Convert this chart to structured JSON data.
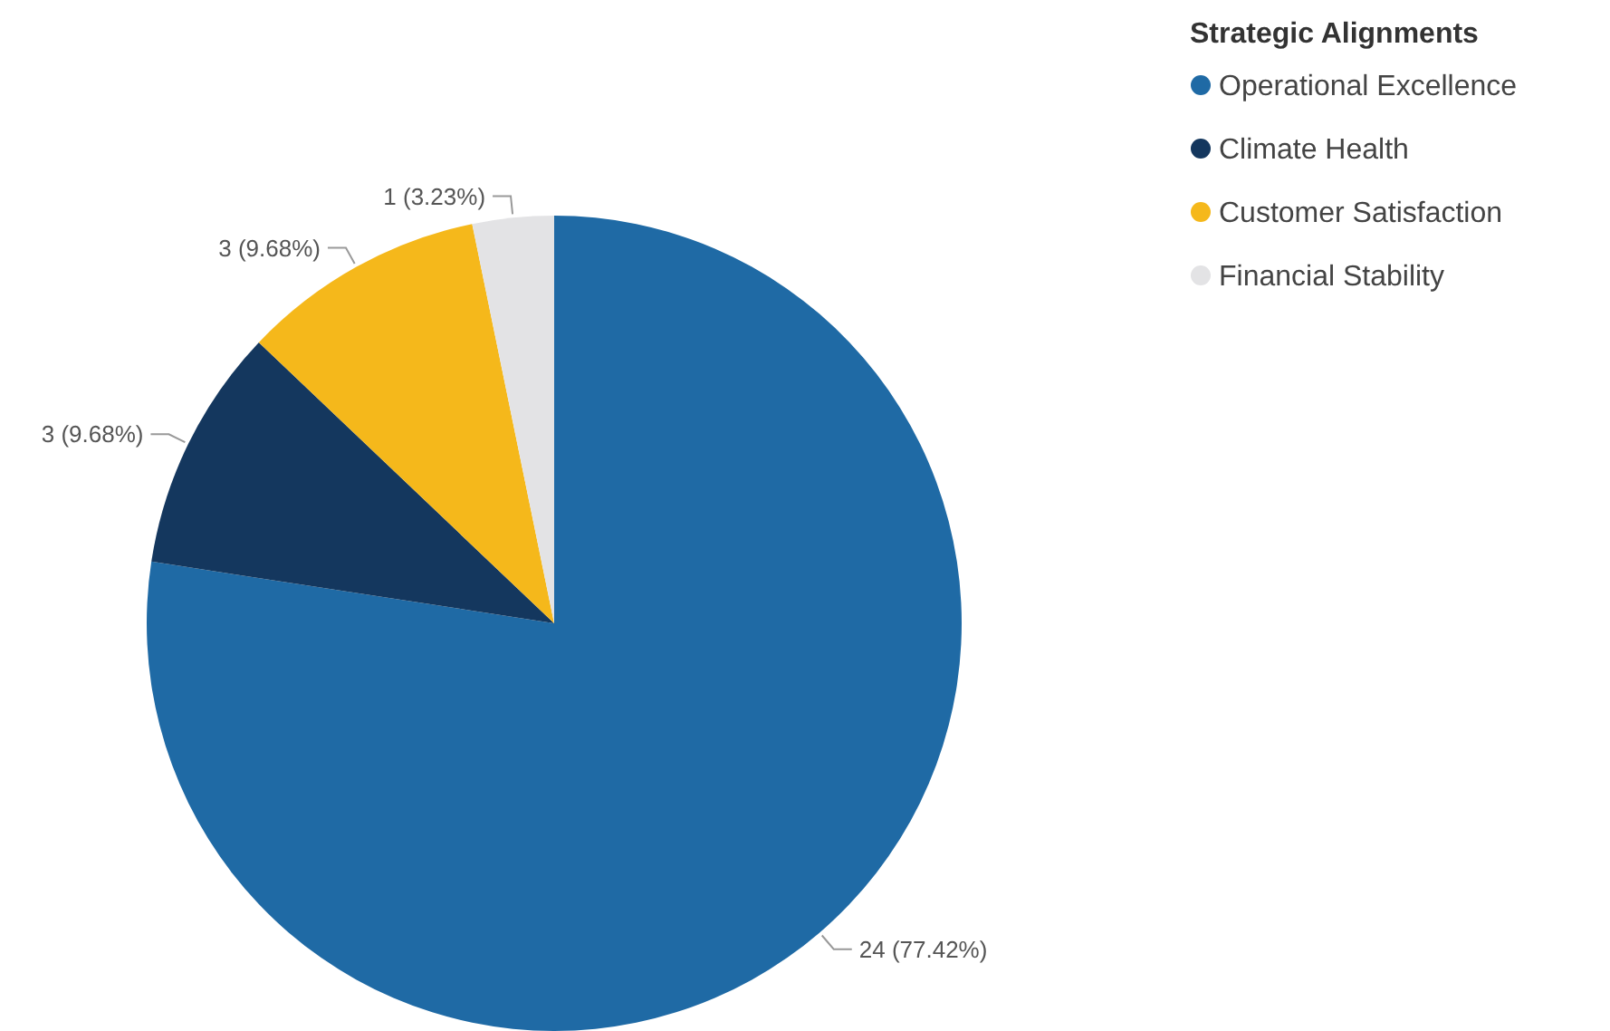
{
  "chart_data": {
    "type": "pie",
    "legend_title": "Strategic Alignments",
    "legend": "top right",
    "categories": [
      "Operational Excellence",
      "Climate Health",
      "Customer Satisfaction",
      "Financial Stability"
    ],
    "values": [
      24,
      3,
      3,
      1
    ],
    "colors": [
      "#1f6aa5",
      "#14375e",
      "#f5b81b",
      "#e3e3e5"
    ],
    "value_labels": [
      "24 (77.42%)",
      "3 (9.68%)",
      "3 (9.68%)",
      "1 (3.23%)"
    ]
  }
}
